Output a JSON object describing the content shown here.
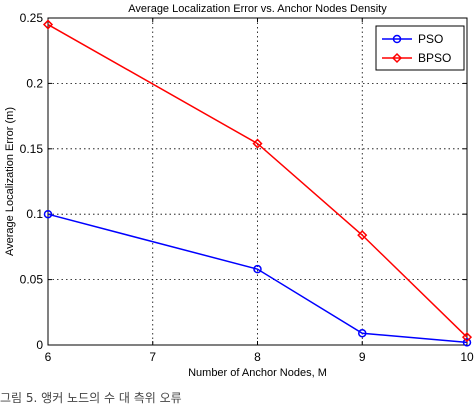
{
  "chart_data": {
    "type": "line",
    "title": "Average Localization Error vs. Anchor Nodes Density",
    "xlabel": "Number of Anchor Nodes, M",
    "ylabel": "Average Localization Error (m)",
    "xlim": [
      6,
      10
    ],
    "ylim": [
      0,
      0.25
    ],
    "xticks": [
      "6",
      "7",
      "8",
      "9",
      "10"
    ],
    "yticks": [
      "0",
      "0.05",
      "0.1",
      "0.15",
      "0.2",
      "0.25"
    ],
    "grid": true,
    "legend_position": "top-right",
    "series": [
      {
        "name": "PSO",
        "color": "#0000ff",
        "marker": "circle",
        "x": [
          6,
          8,
          9,
          10
        ],
        "y": [
          0.1,
          0.058,
          0.009,
          0.002
        ]
      },
      {
        "name": "BPSO",
        "color": "#ff0000",
        "marker": "diamond",
        "x": [
          6,
          8,
          9,
          10
        ],
        "y": [
          0.245,
          0.154,
          0.084,
          0.006
        ]
      }
    ]
  },
  "caption": "그림 5. 앵커 노드의 수 대 측위 오류"
}
